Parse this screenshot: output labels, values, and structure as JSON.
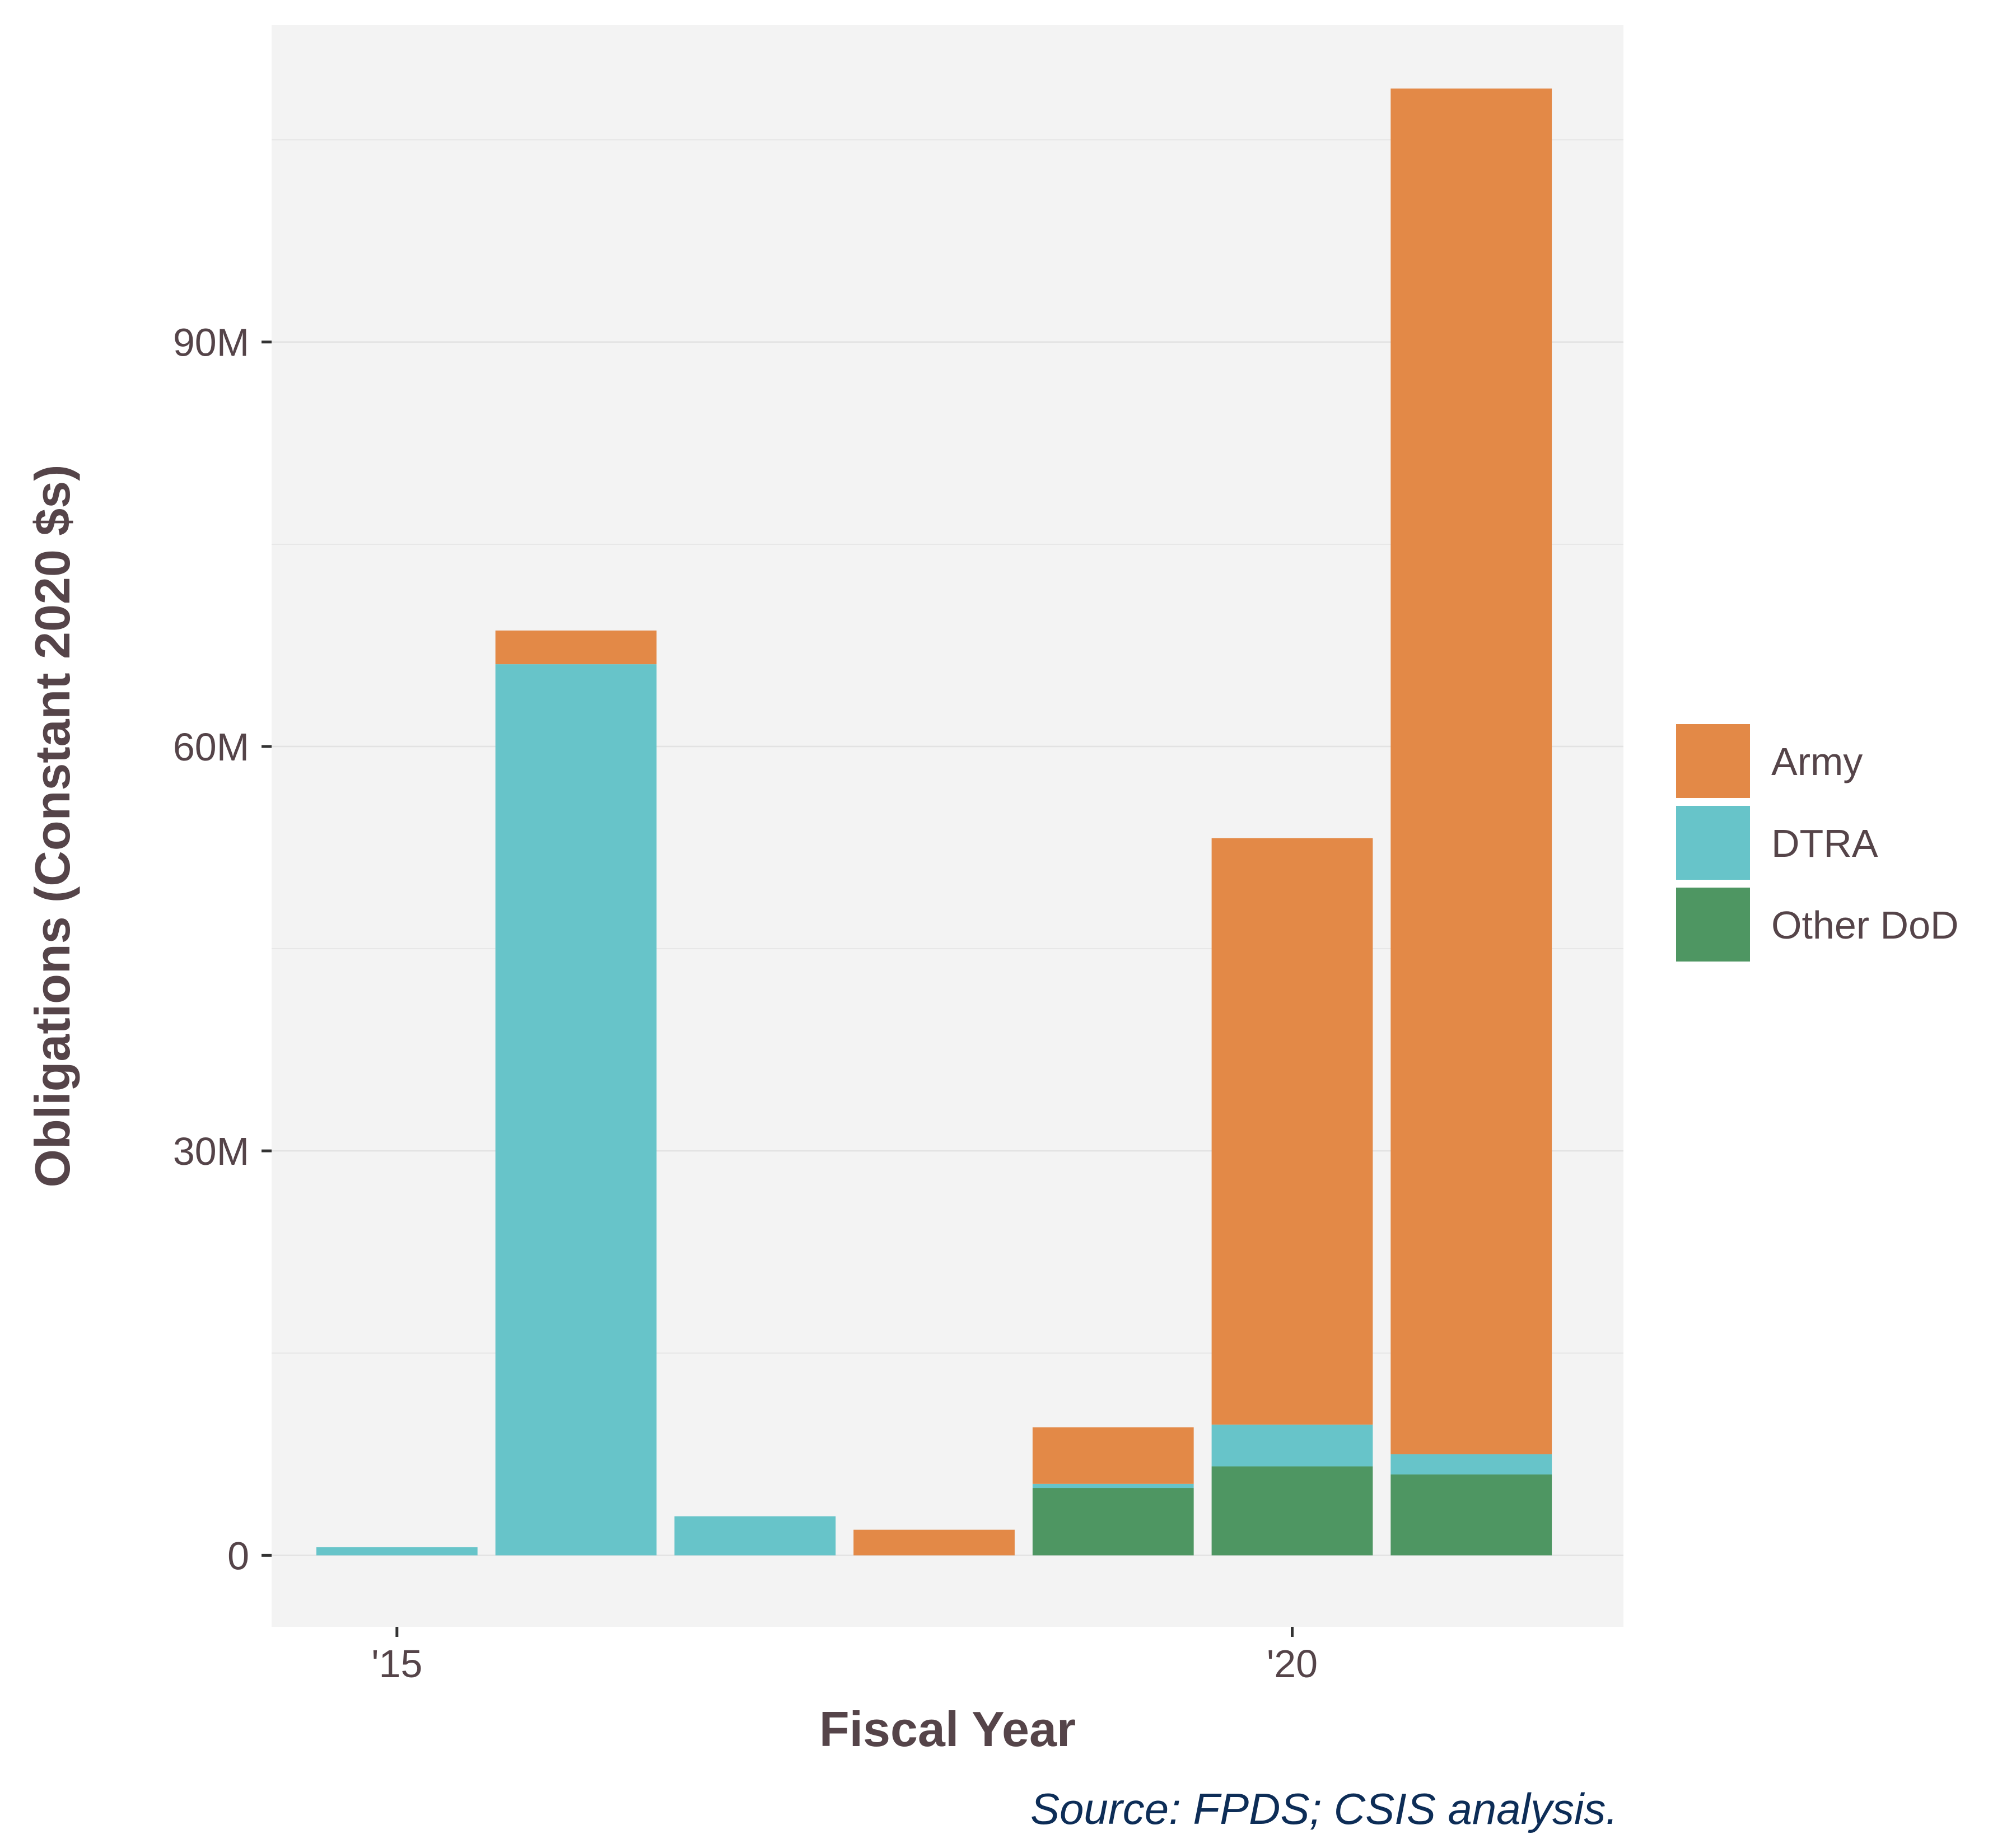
{
  "chart_data": {
    "type": "bar",
    "stacked": true,
    "xlabel": "Fiscal Year",
    "ylabel": "Obligations (Constant 2020 $s)",
    "x": [
      2015,
      2016,
      2017,
      2018,
      2019,
      2020,
      2021
    ],
    "x_ticks": [
      2015,
      2020
    ],
    "x_tick_labels": [
      "'15",
      "'20"
    ],
    "y_ticks": [
      0,
      30,
      60,
      90
    ],
    "y_tick_labels": [
      "0",
      "30M",
      "60M",
      "90M"
    ],
    "ylim": [
      -5.3,
      113.5
    ],
    "xlim": [
      2014.3,
      2021.85
    ],
    "y_unit": "millions of dollars",
    "grid": true,
    "legend_position": "right",
    "series": [
      {
        "name": "Other DoD",
        "color": "#4e9662",
        "values": [
          0,
          0,
          0,
          0,
          5.0,
          6.6,
          6.0
        ]
      },
      {
        "name": "DTRA",
        "color": "#67c4c9",
        "values": [
          0.6,
          66.1,
          2.9,
          0,
          0.3,
          3.1,
          1.5
        ]
      },
      {
        "name": "Army",
        "color": "#e38947",
        "values": [
          0,
          2.5,
          0,
          1.9,
          4.2,
          43.5,
          101.3
        ]
      }
    ],
    "legend_order": [
      "Army",
      "DTRA",
      "Other DoD"
    ],
    "source": "Source: FPDS; CSIS analysis."
  }
}
